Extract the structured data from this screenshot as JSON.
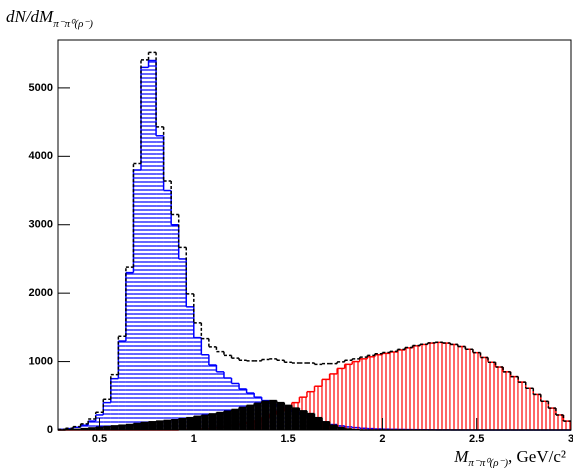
{
  "chart_data": {
    "type": "histogram",
    "ylabel": "dN/dM",
    "ylabel_subscript": "π⁻π⁰(ρ⁻)",
    "xlabel": "M",
    "xlabel_subscript": "π⁻π⁰(ρ⁻)",
    "xlabel_unit": ", GeV/c²",
    "bins": [
      0.28,
      0.32,
      0.36,
      0.4,
      0.44,
      0.48,
      0.52,
      0.56,
      0.6,
      0.64,
      0.68,
      0.72,
      0.76,
      0.8,
      0.84,
      0.88,
      0.92,
      0.96,
      1.0,
      1.04,
      1.08,
      1.12,
      1.16,
      1.2,
      1.24,
      1.28,
      1.32,
      1.36,
      1.4,
      1.44,
      1.48,
      1.52,
      1.56,
      1.6,
      1.64,
      1.68,
      1.72,
      1.76,
      1.8,
      1.84,
      1.88,
      1.92,
      1.96,
      2.0,
      2.04,
      2.08,
      2.12,
      2.16,
      2.2,
      2.24,
      2.28,
      2.32,
      2.36,
      2.4,
      2.44,
      2.48,
      2.52,
      2.56,
      2.6,
      2.64,
      2.68,
      2.72,
      2.76,
      2.8,
      2.84,
      2.88,
      2.92,
      2.96,
      3.0
    ],
    "series": [
      {
        "color": "#0000ff",
        "fill_style": "horizontal-hatch",
        "values": [
          10,
          20,
          40,
          70,
          130,
          220,
          400,
          750,
          1300,
          2300,
          3800,
          5300,
          5400,
          4300,
          3500,
          3000,
          2500,
          1800,
          1350,
          1100,
          950,
          850,
          760,
          680,
          600,
          540,
          480,
          430,
          380,
          340,
          300,
          260,
          220,
          180,
          140,
          110,
          80,
          60,
          45,
          35,
          25,
          20,
          15,
          12,
          10,
          8,
          6,
          5,
          4,
          3,
          2,
          2,
          1,
          1,
          1,
          1,
          0,
          0,
          0,
          0,
          0,
          0,
          0,
          0,
          0,
          0,
          0,
          0
        ]
      },
      {
        "color": "#ff0000",
        "fill_style": "vertical-hatch",
        "values": [
          0,
          0,
          0,
          0,
          0,
          0,
          0,
          0,
          0,
          0,
          0,
          0,
          0,
          0,
          0,
          0,
          5,
          10,
          15,
          20,
          30,
          40,
          55,
          70,
          90,
          110,
          140,
          180,
          230,
          280,
          330,
          400,
          480,
          560,
          640,
          740,
          820,
          900,
          960,
          1000,
          1040,
          1070,
          1100,
          1120,
          1140,
          1170,
          1200,
          1230,
          1250,
          1270,
          1280,
          1270,
          1250,
          1220,
          1180,
          1130,
          1060,
          990,
          920,
          850,
          780,
          700,
          610,
          520,
          420,
          320,
          220,
          130
        ]
      },
      {
        "color": "#000000",
        "fill_style": "solid",
        "values": [
          0,
          5,
          10,
          20,
          30,
          40,
          50,
          60,
          70,
          80,
          95,
          110,
          120,
          130,
          140,
          150,
          165,
          180,
          200,
          215,
          235,
          255,
          275,
          300,
          330,
          360,
          390,
          420,
          430,
          400,
          360,
          320,
          280,
          240,
          180,
          120,
          70,
          35,
          15,
          5,
          0,
          0,
          0,
          0,
          0,
          0,
          0,
          0,
          0,
          0,
          0,
          0,
          0,
          0,
          0,
          0,
          0,
          0,
          0,
          0,
          0,
          0,
          0,
          0,
          0,
          0,
          0,
          0
        ]
      }
    ],
    "total_style": "dashed",
    "xlim": [
      0.28,
      3.0
    ],
    "ylim": [
      0,
      5700
    ],
    "xticks": [
      0.5,
      1,
      1.5,
      2,
      2.5,
      3
    ],
    "yticks": [
      0,
      1000,
      2000,
      3000,
      4000,
      5000
    ]
  }
}
